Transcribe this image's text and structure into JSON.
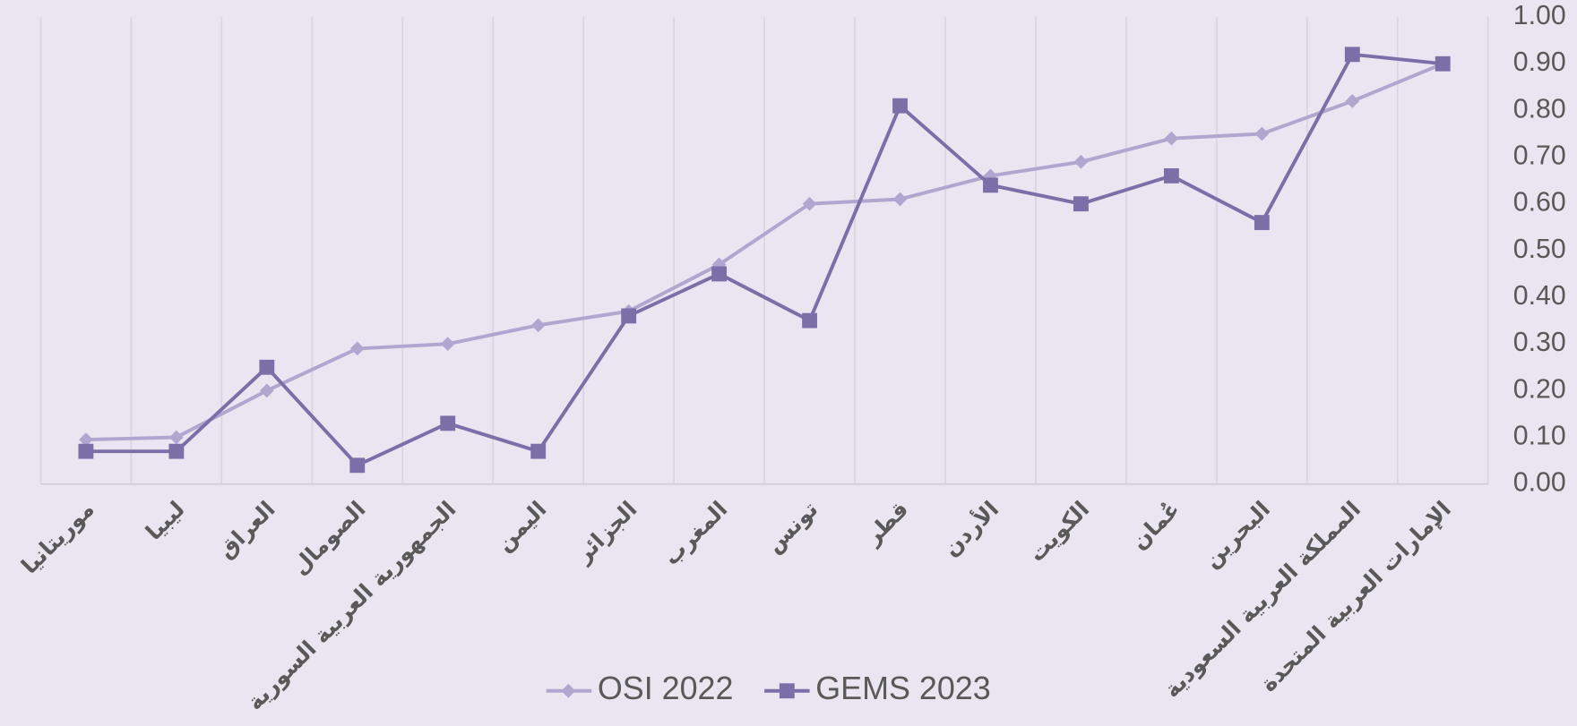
{
  "chart_data": {
    "type": "line",
    "categories": [
      "موريتانيا",
      "ليبيا",
      "العراق",
      "الصومال",
      "الجمهورية العربية السورية",
      "اليمن",
      "الجزائر",
      "المغرب",
      "تونس",
      "قطر",
      "الأردن",
      "الكويت",
      "عُمان",
      "البحرين",
      "المملكة العربية السعودية",
      "الإمارات العربية المتحدة"
    ],
    "series": [
      {
        "name": "OSI 2022",
        "color": "#b0a6cf",
        "marker": "diamond",
        "values": [
          0.095,
          0.1,
          0.2,
          0.29,
          0.3,
          0.34,
          0.37,
          0.47,
          0.6,
          0.61,
          0.66,
          0.69,
          0.74,
          0.75,
          0.82,
          0.9
        ]
      },
      {
        "name": "GEMS 2023",
        "color": "#7b6fa8",
        "marker": "square",
        "values": [
          0.07,
          0.07,
          0.25,
          0.04,
          0.13,
          0.07,
          0.36,
          0.45,
          0.35,
          0.81,
          0.64,
          0.6,
          0.66,
          0.56,
          0.92,
          0.9
        ]
      }
    ],
    "ylim": [
      0,
      1
    ],
    "yticks": [
      {
        "value": 0,
        "label": "0.00"
      },
      {
        "value": 0.1,
        "label": "0.10"
      },
      {
        "value": 0.2,
        "label": "0.20"
      },
      {
        "value": 0.3,
        "label": "0.30"
      },
      {
        "value": 0.4,
        "label": "0.40"
      },
      {
        "value": 0.5,
        "label": "0.50"
      },
      {
        "value": 0.6,
        "label": "0.60"
      },
      {
        "value": 0.7,
        "label": "0.70"
      },
      {
        "value": 0.8,
        "label": "0.80"
      },
      {
        "value": 0.9,
        "label": "0.90"
      },
      {
        "value": 1,
        "label": "1.00"
      }
    ],
    "y_axis_side": "right",
    "grid": "vertical",
    "legend": "bottom"
  }
}
